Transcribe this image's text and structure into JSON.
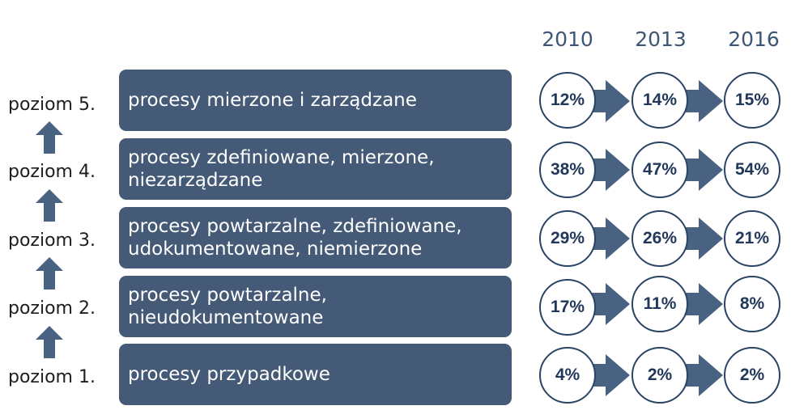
{
  "years": [
    "2010",
    "2013",
    "2016"
  ],
  "levels": [
    {
      "label": "poziom 5.",
      "description": "procesy mierzone i zarządzane",
      "values": [
        "12%",
        "14%",
        "15%"
      ]
    },
    {
      "label": "poziom 4.",
      "description": "procesy zdefiniowane, mierzone,\nniezarządzane",
      "values": [
        "38%",
        "47%",
        "54%"
      ]
    },
    {
      "label": "poziom 3.",
      "description": "procesy powtarzalne, zdefiniowane,\nudokumentowane, niemierzone",
      "values": [
        "29%",
        "26%",
        "21%"
      ]
    },
    {
      "label": "poziom 2.",
      "description": "procesy powtarzalne,\nnieudokumentowane",
      "values": [
        "17%",
        "11%",
        "8%"
      ]
    },
    {
      "label": "poziom 1.",
      "description": "procesy przypadkowe",
      "values": [
        "4%",
        "2%",
        "2%"
      ]
    }
  ],
  "colors": {
    "box": "#445a76",
    "arrow": "#4a6282",
    "circle_border": "#2a4466",
    "year_text": "#3e5675"
  },
  "icons": {
    "up_arrow": "up-arrow-icon",
    "right_arrow": "right-arrow-icon"
  }
}
